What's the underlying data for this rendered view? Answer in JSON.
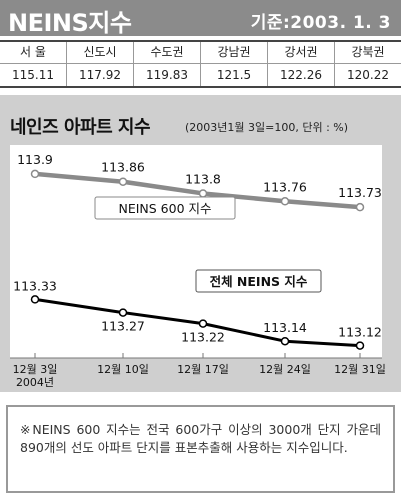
{
  "header": {
    "title": "NEINS지수",
    "date": "기준:2003. 1. 3"
  },
  "regions": [
    {
      "name": "서 울",
      "value": "115.11"
    },
    {
      "name": "신도시",
      "value": "117.92"
    },
    {
      "name": "수도권",
      "value": "119.83"
    },
    {
      "name": "강남권",
      "value": "121.5"
    },
    {
      "name": "강서권",
      "value": "122.26"
    },
    {
      "name": "강북권",
      "value": "120.22"
    }
  ],
  "colors": {
    "header_bg": "#8b8b8b",
    "panel_bg": "#cfcfcf",
    "series_600": "#8a8a8a",
    "series_all": "#000000"
  },
  "chart_data": {
    "type": "line",
    "title": "네인즈 아파트 지수",
    "subtitle": "(2003년1월 3일=100, 단위 : %)",
    "categories": [
      "12월 3일",
      "12월 10일",
      "12월 17일",
      "12월 24일",
      "12월 31일"
    ],
    "category_year_note": "2004년",
    "series": [
      {
        "name": "NEINS 600 지수",
        "values": [
          113.9,
          113.86,
          113.8,
          113.76,
          113.73
        ],
        "labels": [
          "113.9",
          "113.86",
          "113.8",
          "113.76",
          "113.73"
        ]
      },
      {
        "name": "전체 NEINS 지수",
        "values": [
          113.33,
          113.27,
          113.22,
          113.14,
          113.12
        ],
        "labels": [
          "113.33",
          "113.27",
          "113.22",
          "113.14",
          "113.12"
        ]
      }
    ],
    "grid": false,
    "legend": "inline labels on lines"
  },
  "note": "※NEINS 600 지수는 전국 600가구 이상의 3000개 단지 가운데 890개의 선도 아파트 단지를 표본추출해 사용하는 지수입니다."
}
